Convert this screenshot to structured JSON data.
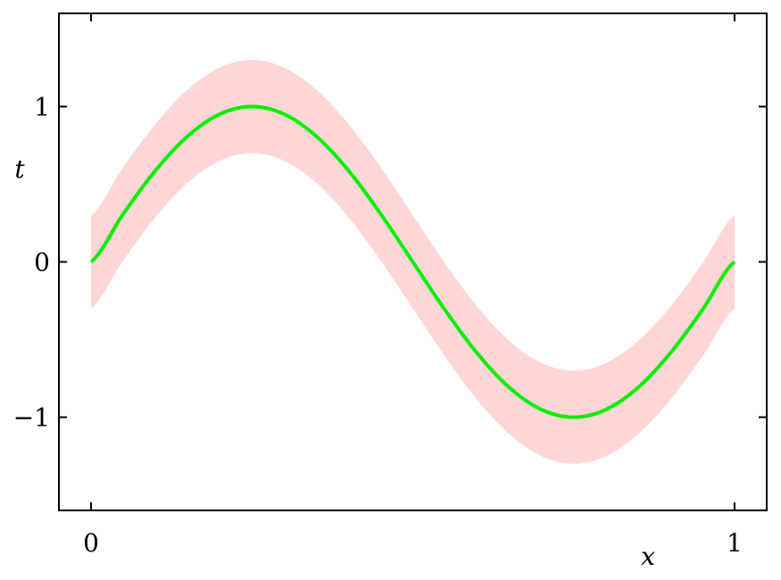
{
  "chart_data": {
    "type": "line",
    "xlabel": "x",
    "ylabel": "t",
    "xlim": [
      -0.05,
      1.05
    ],
    "ylim": [
      -1.6,
      1.6
    ],
    "x_ticks": [
      {
        "value": 0,
        "label": "0"
      },
      {
        "value": 1,
        "label": "1"
      }
    ],
    "y_ticks": [
      {
        "value": 1,
        "label": "1"
      },
      {
        "value": 0,
        "label": "0"
      },
      {
        "value": -1,
        "label": "−1"
      }
    ],
    "grid": false,
    "series": [
      {
        "kind": "line",
        "color": "#00ee00",
        "x": [
          0,
          0.05,
          0.1,
          0.15,
          0.2,
          0.25,
          0.3,
          0.35,
          0.4,
          0.45,
          0.5,
          0.55,
          0.6,
          0.65,
          0.7,
          0.75,
          0.8,
          0.85,
          0.9,
          0.95,
          1.0
        ],
        "y": [
          0,
          0.309,
          0.588,
          0.809,
          0.951,
          1.0,
          0.951,
          0.809,
          0.588,
          0.309,
          0,
          -0.309,
          -0.588,
          -0.809,
          -0.951,
          -1.0,
          -0.951,
          -0.809,
          -0.588,
          -0.309,
          0
        ]
      },
      {
        "kind": "band",
        "color": "#ffd6d6",
        "x": [
          0,
          0.05,
          0.1,
          0.15,
          0.2,
          0.25,
          0.3,
          0.35,
          0.4,
          0.45,
          0.5,
          0.55,
          0.6,
          0.65,
          0.7,
          0.75,
          0.8,
          0.85,
          0.9,
          0.95,
          1.0
        ],
        "lower": [
          -0.3,
          0.009,
          0.288,
          0.509,
          0.651,
          0.7,
          0.651,
          0.509,
          0.288,
          0.009,
          -0.3,
          -0.609,
          -0.888,
          -1.109,
          -1.251,
          -1.3,
          -1.251,
          -1.109,
          -0.888,
          -0.609,
          -0.3
        ],
        "upper": [
          0.3,
          0.609,
          0.888,
          1.109,
          1.251,
          1.3,
          1.251,
          1.109,
          0.888,
          0.609,
          0.3,
          -0.009,
          -0.288,
          -0.509,
          -0.651,
          -0.7,
          -0.651,
          -0.509,
          -0.288,
          -0.009,
          0.3
        ]
      }
    ]
  }
}
